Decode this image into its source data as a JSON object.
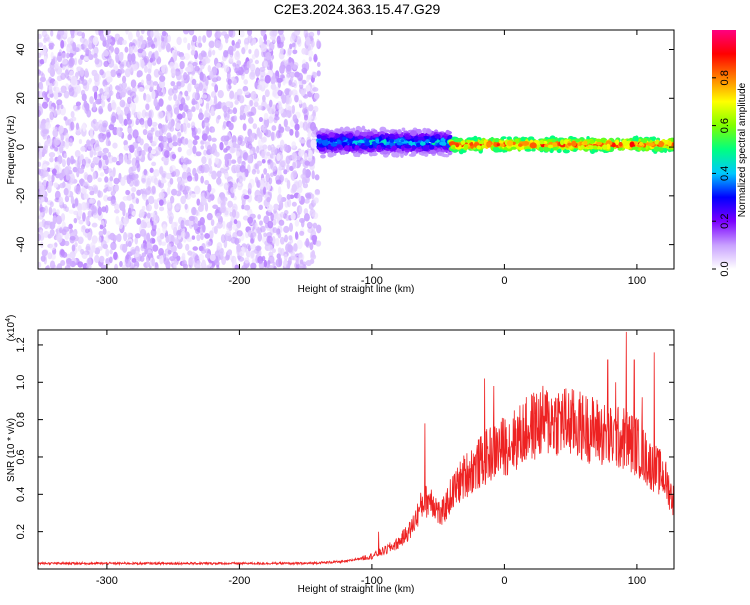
{
  "title": "C2E3.2024.363.15.47.G29",
  "chart_data": [
    {
      "type": "heatmap",
      "xlabel": "Height of straight line (km)",
      "ylabel": "Frequency (Hz)",
      "xlim": [
        -352,
        128
      ],
      "ylim": [
        -50,
        48
      ],
      "x_ticks": [
        -300,
        -200,
        -100,
        0,
        100
      ],
      "x_tick_labels": [
        "-300",
        "-200",
        "-100",
        "0",
        "100"
      ],
      "y_ticks": [
        -40,
        -20,
        0,
        20,
        40
      ],
      "y_tick_labels": [
        "-40",
        "-20",
        "0",
        "20",
        "40"
      ],
      "colorbar": {
        "label": "Normalized spectral amplitude",
        "range": [
          0,
          1
        ],
        "ticks": [
          0.0,
          0.2,
          0.4,
          0.6,
          0.8
        ],
        "tick_labels": [
          "0.0",
          "0.2",
          "0.4",
          "0.6",
          "0.8"
        ],
        "colors": [
          "#ffffff",
          "#c8a0ff",
          "#7b00ff",
          "#0000ff",
          "#00c8ff",
          "#00ff80",
          "#80ff00",
          "#ffff00",
          "#ff8000",
          "#ff0000",
          "#ff0080"
        ]
      },
      "regions": [
        {
          "x_range": [
            -352,
            -140
          ],
          "freq_range": [
            -50,
            48
          ],
          "amplitude_range": [
            0.02,
            0.12
          ],
          "description_type": "noise"
        },
        {
          "x_range": [
            -140,
            -40
          ],
          "center_freq": 2,
          "width_hz": 10,
          "amplitude_range": [
            0.1,
            0.5
          ]
        },
        {
          "x_range": [
            -40,
            128
          ],
          "center_freq": 1,
          "width_hz": 5,
          "amplitude_range": [
            0.5,
            0.95
          ]
        }
      ],
      "grid": false
    },
    {
      "type": "line",
      "xlabel": "Height of straight line (km)",
      "ylabel": "SNR (10 * v/v)",
      "y_multiplier": "(x10",
      "y_multiplier_exp": "4",
      "y_multiplier_close": ")",
      "xlim": [
        -352,
        128
      ],
      "ylim": [
        0,
        1.28
      ],
      "x_ticks": [
        -300,
        -200,
        -100,
        0,
        100
      ],
      "x_tick_labels": [
        "-300",
        "-200",
        "-100",
        "0",
        "100"
      ],
      "y_ticks": [
        0.2,
        0.4,
        0.6,
        0.8,
        1.0,
        1.2
      ],
      "y_tick_labels": [
        "0.2",
        "0.4",
        "0.6",
        "0.8",
        "1.0",
        "1.2"
      ],
      "series": [
        {
          "color": "#ee2222",
          "envelope": {
            "x": [
              -352,
              -300,
              -200,
              -150,
              -120,
              -100,
              -90,
              -80,
              -70,
              -62,
              -55,
              -48,
              -40,
              -30,
              -20,
              -10,
              0,
              10,
              20,
              30,
              40,
              50,
              60,
              70,
              80,
              90,
              100,
              110,
              120,
              128
            ],
            "y": [
              0.03,
              0.03,
              0.03,
              0.03,
              0.04,
              0.07,
              0.1,
              0.14,
              0.22,
              0.35,
              0.38,
              0.28,
              0.4,
              0.5,
              0.56,
              0.62,
              0.66,
              0.7,
              0.76,
              0.79,
              0.8,
              0.78,
              0.76,
              0.74,
              0.7,
              0.7,
              0.66,
              0.56,
              0.5,
              0.36
            ]
          },
          "peaks": [
            {
              "x": -15,
              "y": 1.02
            },
            {
              "x": -8,
              "y": 0.98
            },
            {
              "x": 78,
              "y": 1.12
            },
            {
              "x": 92,
              "y": 1.27
            },
            {
              "x": 98,
              "y": 1.12
            },
            {
              "x": 113,
              "y": 1.16
            },
            {
              "x": 104,
              "y": 0.92
            },
            {
              "x": 84,
              "y": 1.0
            },
            {
              "x": -60,
              "y": 0.78
            },
            {
              "x": -95,
              "y": 0.2
            }
          ]
        }
      ],
      "grid": false
    }
  ]
}
